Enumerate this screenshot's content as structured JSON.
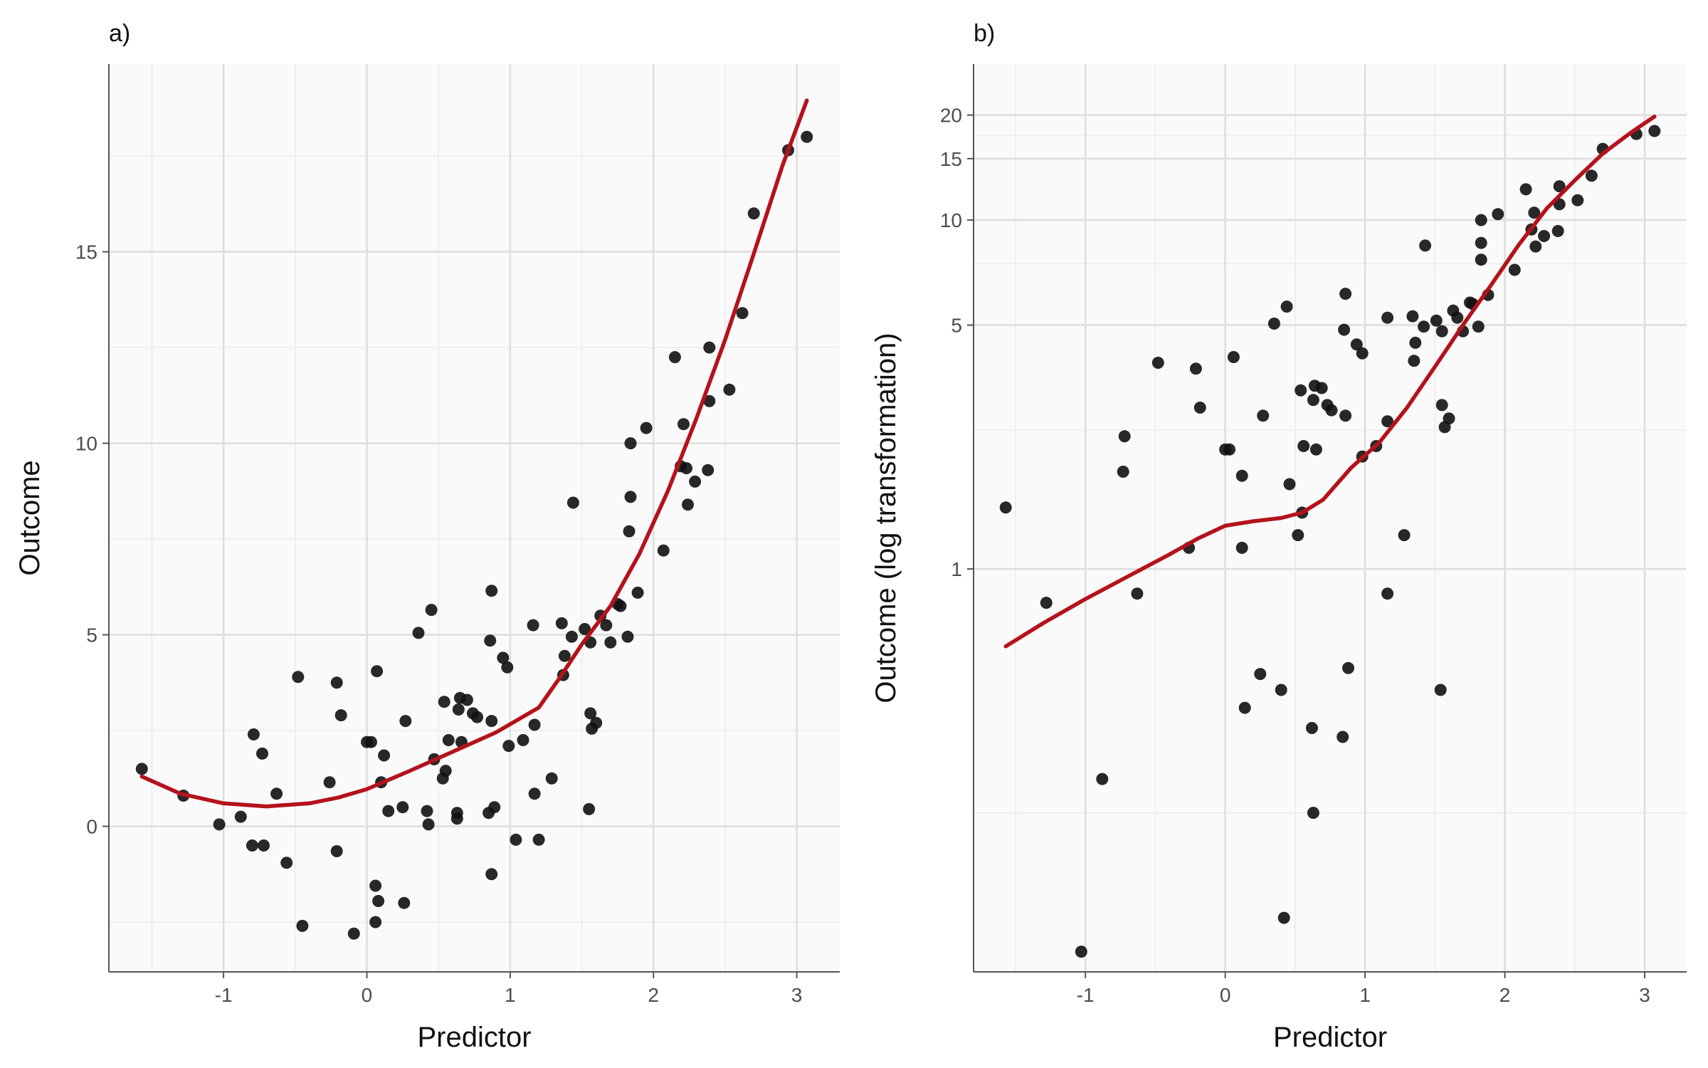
{
  "chart_data": [
    {
      "type": "scatter",
      "panel_label": "a)",
      "xlabel": "Predictor",
      "ylabel": "Outcome",
      "xlim": [
        -1.8,
        3.3
      ],
      "ylim": [
        -3.8,
        19.9
      ],
      "x_ticks": [
        -1,
        0,
        1,
        2,
        3
      ],
      "x_tick_labels": [
        "-1",
        "0",
        "1",
        "2",
        "3"
      ],
      "y_ticks": [
        0,
        5,
        10,
        15
      ],
      "y_tick_labels": [
        "0",
        "5",
        "10",
        "15"
      ],
      "y_minor_ticks": [
        -2.5,
        2.5,
        7.5,
        12.5,
        17.5
      ],
      "grid": true,
      "point_color": "#111111",
      "line_color": "#b5121b",
      "points": [
        [
          -1.57,
          1.5
        ],
        [
          -1.28,
          0.8
        ],
        [
          -1.03,
          0.05
        ],
        [
          -0.88,
          0.25
        ],
        [
          -0.8,
          -0.5
        ],
        [
          -0.79,
          2.4
        ],
        [
          -0.73,
          1.9
        ],
        [
          -0.72,
          -0.5
        ],
        [
          -0.63,
          0.85
        ],
        [
          -0.56,
          -0.95
        ],
        [
          -0.48,
          3.9
        ],
        [
          -0.45,
          -2.6
        ],
        [
          -0.26,
          1.15
        ],
        [
          -0.21,
          -0.65
        ],
        [
          -0.21,
          3.75
        ],
        [
          -0.18,
          2.9
        ],
        [
          -0.09,
          -2.8
        ],
        [
          0.0,
          2.2
        ],
        [
          0.03,
          2.2
        ],
        [
          0.06,
          -2.5
        ],
        [
          0.06,
          -1.55
        ],
        [
          0.07,
          4.05
        ],
        [
          0.08,
          -1.95
        ],
        [
          0.1,
          1.15
        ],
        [
          0.12,
          1.85
        ],
        [
          0.15,
          0.4
        ],
        [
          0.25,
          0.5
        ],
        [
          0.26,
          -2.0
        ],
        [
          0.27,
          2.75
        ],
        [
          0.36,
          5.05
        ],
        [
          0.42,
          0.4
        ],
        [
          0.43,
          0.05
        ],
        [
          0.45,
          5.65
        ],
        [
          0.47,
          1.75
        ],
        [
          0.53,
          1.25
        ],
        [
          0.54,
          3.25
        ],
        [
          0.55,
          1.45
        ],
        [
          0.57,
          2.25
        ],
        [
          0.63,
          0.35
        ],
        [
          0.63,
          0.2
        ],
        [
          0.64,
          3.05
        ],
        [
          0.65,
          3.35
        ],
        [
          0.66,
          2.2
        ],
        [
          0.7,
          3.3
        ],
        [
          0.74,
          2.95
        ],
        [
          0.77,
          2.85
        ],
        [
          0.85,
          0.35
        ],
        [
          0.86,
          4.85
        ],
        [
          0.87,
          2.75
        ],
        [
          0.87,
          6.15
        ],
        [
          0.87,
          -1.25
        ],
        [
          0.89,
          0.5
        ],
        [
          0.95,
          4.4
        ],
        [
          0.98,
          4.15
        ],
        [
          0.99,
          2.1
        ],
        [
          1.04,
          -0.35
        ],
        [
          1.09,
          2.25
        ],
        [
          1.16,
          5.25
        ],
        [
          1.17,
          2.65
        ],
        [
          1.17,
          0.85
        ],
        [
          1.2,
          -0.35
        ],
        [
          1.29,
          1.25
        ],
        [
          1.36,
          5.3
        ],
        [
          1.37,
          3.95
        ],
        [
          1.38,
          4.45
        ],
        [
          1.43,
          4.95
        ],
        [
          1.44,
          8.45
        ],
        [
          1.52,
          5.15
        ],
        [
          1.55,
          0.45
        ],
        [
          1.56,
          4.8
        ],
        [
          1.56,
          2.95
        ],
        [
          1.57,
          2.55
        ],
        [
          1.6,
          2.7
        ],
        [
          1.63,
          5.5
        ],
        [
          1.67,
          5.25
        ],
        [
          1.7,
          4.8
        ],
        [
          1.75,
          5.8
        ],
        [
          1.77,
          5.75
        ],
        [
          1.82,
          4.95
        ],
        [
          1.83,
          7.7
        ],
        [
          1.84,
          10.0
        ],
        [
          1.84,
          8.6
        ],
        [
          1.89,
          6.1
        ],
        [
          1.95,
          10.4
        ],
        [
          2.07,
          7.2
        ],
        [
          2.15,
          12.25
        ],
        [
          2.19,
          9.4
        ],
        [
          2.21,
          10.5
        ],
        [
          2.23,
          9.35
        ],
        [
          2.24,
          8.4
        ],
        [
          2.29,
          9.0
        ],
        [
          2.38,
          9.3
        ],
        [
          2.39,
          12.5
        ],
        [
          2.39,
          11.1
        ],
        [
          2.53,
          11.4
        ],
        [
          2.62,
          13.4
        ],
        [
          2.7,
          16.0
        ],
        [
          2.94,
          17.65
        ],
        [
          3.07,
          18.0
        ]
      ],
      "smooth": [
        [
          -1.57,
          1.3
        ],
        [
          -1.3,
          0.85
        ],
        [
          -1.0,
          0.6
        ],
        [
          -0.7,
          0.52
        ],
        [
          -0.4,
          0.6
        ],
        [
          -0.2,
          0.75
        ],
        [
          0.0,
          0.97
        ],
        [
          0.3,
          1.45
        ],
        [
          0.6,
          1.95
        ],
        [
          0.9,
          2.45
        ],
        [
          1.2,
          3.1
        ],
        [
          1.35,
          3.9
        ],
        [
          1.5,
          4.75
        ],
        [
          1.7,
          5.75
        ],
        [
          1.9,
          7.1
        ],
        [
          2.1,
          8.75
        ],
        [
          2.3,
          10.65
        ],
        [
          2.5,
          12.7
        ],
        [
          2.7,
          14.95
        ],
        [
          2.9,
          17.25
        ],
        [
          3.07,
          18.95
        ]
      ]
    },
    {
      "type": "scatter",
      "panel_label": "b)",
      "xlabel": "Predictor",
      "ylabel": "Outcome (log transformation)",
      "y_scale": "log",
      "xlim": [
        -1.8,
        3.3
      ],
      "ylim": [
        0.07,
        28
      ],
      "x_ticks": [
        -1,
        0,
        1,
        2,
        3
      ],
      "x_tick_labels": [
        "-1",
        "0",
        "1",
        "2",
        "3"
      ],
      "y_ticks": [
        1,
        5,
        10,
        15,
        20
      ],
      "y_tick_labels": [
        "1",
        "5",
        "10",
        "15",
        "20"
      ],
      "y_minor_ticks": [
        0.2,
        2.5,
        7.5,
        17.5
      ],
      "grid": true,
      "point_color": "#111111",
      "line_color": "#b5121b",
      "points": [
        [
          -1.57,
          1.5
        ],
        [
          -1.28,
          0.8
        ],
        [
          -1.03,
          0.08
        ],
        [
          -0.88,
          0.25
        ],
        [
          -0.73,
          1.9
        ],
        [
          -0.72,
          2.4
        ],
        [
          -0.63,
          0.85
        ],
        [
          -0.48,
          3.9
        ],
        [
          -0.21,
          3.75
        ],
        [
          -0.18,
          2.9
        ],
        [
          -0.26,
          1.15
        ],
        [
          0.0,
          2.2
        ],
        [
          0.03,
          2.2
        ],
        [
          0.06,
          4.05
        ],
        [
          0.12,
          1.85
        ],
        [
          0.12,
          1.15
        ],
        [
          0.14,
          0.4
        ],
        [
          0.25,
          0.5
        ],
        [
          0.27,
          2.75
        ],
        [
          0.35,
          5.05
        ],
        [
          0.4,
          0.45
        ],
        [
          0.42,
          0.1
        ],
        [
          0.44,
          5.65
        ],
        [
          0.46,
          1.75
        ],
        [
          0.52,
          1.25
        ],
        [
          0.54,
          3.25
        ],
        [
          0.55,
          1.45
        ],
        [
          0.56,
          2.25
        ],
        [
          0.62,
          0.35
        ],
        [
          0.63,
          0.2
        ],
        [
          0.63,
          3.05
        ],
        [
          0.64,
          3.35
        ],
        [
          0.65,
          2.2
        ],
        [
          0.69,
          3.3
        ],
        [
          0.73,
          2.95
        ],
        [
          0.76,
          2.85
        ],
        [
          0.84,
          0.33
        ],
        [
          0.85,
          4.85
        ],
        [
          0.86,
          2.75
        ],
        [
          0.86,
          6.15
        ],
        [
          0.88,
          0.52
        ],
        [
          0.94,
          4.4
        ],
        [
          0.98,
          4.15
        ],
        [
          0.98,
          2.1
        ],
        [
          1.16,
          5.25
        ],
        [
          1.16,
          2.65
        ],
        [
          1.16,
          0.85
        ],
        [
          1.08,
          2.25
        ],
        [
          1.28,
          1.25
        ],
        [
          1.34,
          5.3
        ],
        [
          1.35,
          3.95
        ],
        [
          1.36,
          4.45
        ],
        [
          1.42,
          4.95
        ],
        [
          1.43,
          8.45
        ],
        [
          1.51,
          5.15
        ],
        [
          1.54,
          0.45
        ],
        [
          1.55,
          4.8
        ],
        [
          1.55,
          2.95
        ],
        [
          1.57,
          2.55
        ],
        [
          1.6,
          2.7
        ],
        [
          1.63,
          5.5
        ],
        [
          1.66,
          5.25
        ],
        [
          1.7,
          4.8
        ],
        [
          1.75,
          5.8
        ],
        [
          1.77,
          5.75
        ],
        [
          1.81,
          4.95
        ],
        [
          1.83,
          7.7
        ],
        [
          1.83,
          10.0
        ],
        [
          1.83,
          8.6
        ],
        [
          1.88,
          6.1
        ],
        [
          1.95,
          10.4
        ],
        [
          2.07,
          7.2
        ],
        [
          2.15,
          12.25
        ],
        [
          2.19,
          9.4
        ],
        [
          2.21,
          10.5
        ],
        [
          2.22,
          8.4
        ],
        [
          2.28,
          9.0
        ],
        [
          2.38,
          9.3
        ],
        [
          2.39,
          12.5
        ],
        [
          2.39,
          11.1
        ],
        [
          2.52,
          11.4
        ],
        [
          2.62,
          13.4
        ],
        [
          2.7,
          16.0
        ],
        [
          2.94,
          17.65
        ],
        [
          3.07,
          18.0
        ]
      ],
      "smooth": [
        [
          -1.57,
          0.6
        ],
        [
          -1.3,
          0.7
        ],
        [
          -1.0,
          0.82
        ],
        [
          -0.7,
          0.95
        ],
        [
          -0.4,
          1.1
        ],
        [
          -0.2,
          1.22
        ],
        [
          0.0,
          1.33
        ],
        [
          0.2,
          1.37
        ],
        [
          0.4,
          1.4
        ],
        [
          0.55,
          1.45
        ],
        [
          0.7,
          1.58
        ],
        [
          0.9,
          1.95
        ],
        [
          1.1,
          2.3
        ],
        [
          1.3,
          2.9
        ],
        [
          1.5,
          3.8
        ],
        [
          1.7,
          5.0
        ],
        [
          1.9,
          6.5
        ],
        [
          2.1,
          8.5
        ],
        [
          2.3,
          10.8
        ],
        [
          2.5,
          13.0
        ],
        [
          2.7,
          15.5
        ],
        [
          2.9,
          17.8
        ],
        [
          3.07,
          19.8
        ]
      ]
    }
  ]
}
